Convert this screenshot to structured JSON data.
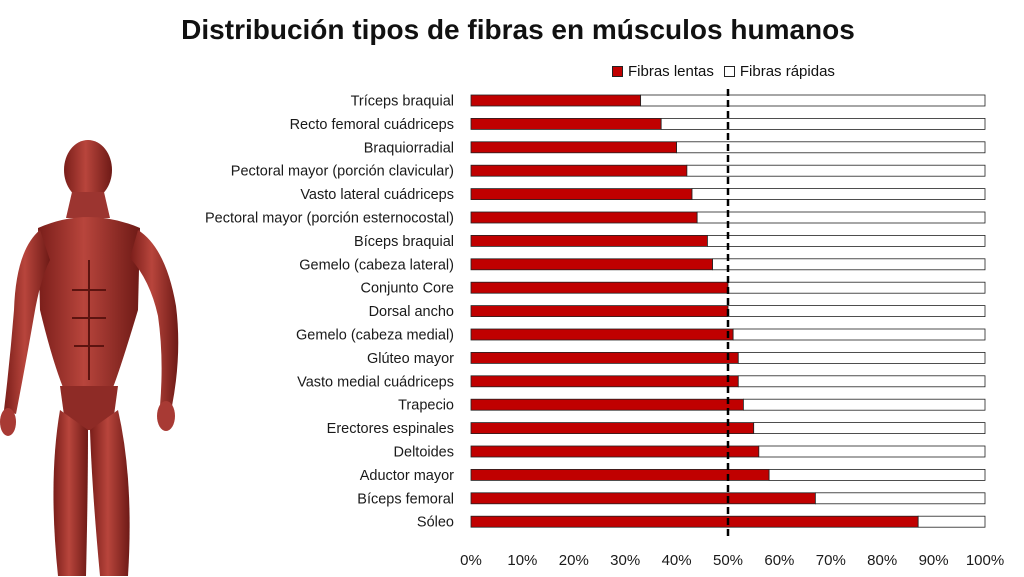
{
  "chart_data": {
    "type": "bar",
    "orientation": "horizontal",
    "stacked": true,
    "title": "Distribución tipos de fibras en músculos humanos",
    "categories": [
      "Tríceps braquial",
      "Recto femoral cuádriceps",
      "Braquiorradial",
      "Pectoral mayor (porción clavicular)",
      "Vasto lateral cuádriceps",
      "Pectoral mayor (porción esternocostal)",
      "Bíceps braquial",
      "Gemelo (cabeza lateral)",
      "Conjunto Core",
      "Dorsal ancho",
      "Gemelo (cabeza medial)",
      "Glúteo mayor",
      "Vasto medial cuádriceps",
      "Trapecio",
      "Erectores espinales",
      "Deltoides",
      "Aductor mayor",
      "Bíceps femoral",
      "Sóleo"
    ],
    "series": [
      {
        "name": "Fibras lentas",
        "color": "#c00000",
        "values": [
          33,
          37,
          40,
          42,
          43,
          44,
          46,
          47,
          50,
          50,
          51,
          52,
          52,
          53,
          55,
          56,
          58,
          67,
          87
        ]
      },
      {
        "name": "Fibras rápidas",
        "color": "#ffffff",
        "values": [
          67,
          63,
          60,
          58,
          57,
          56,
          54,
          53,
          50,
          50,
          49,
          48,
          48,
          47,
          45,
          44,
          42,
          33,
          13
        ]
      }
    ],
    "x_ticks": [
      "0%",
      "10%",
      "20%",
      "30%",
      "40%",
      "50%",
      "60%",
      "70%",
      "80%",
      "90%",
      "100%"
    ],
    "xlim": [
      0,
      100
    ],
    "reference_line": 50,
    "legend_position": "top-right",
    "grid": false
  }
}
